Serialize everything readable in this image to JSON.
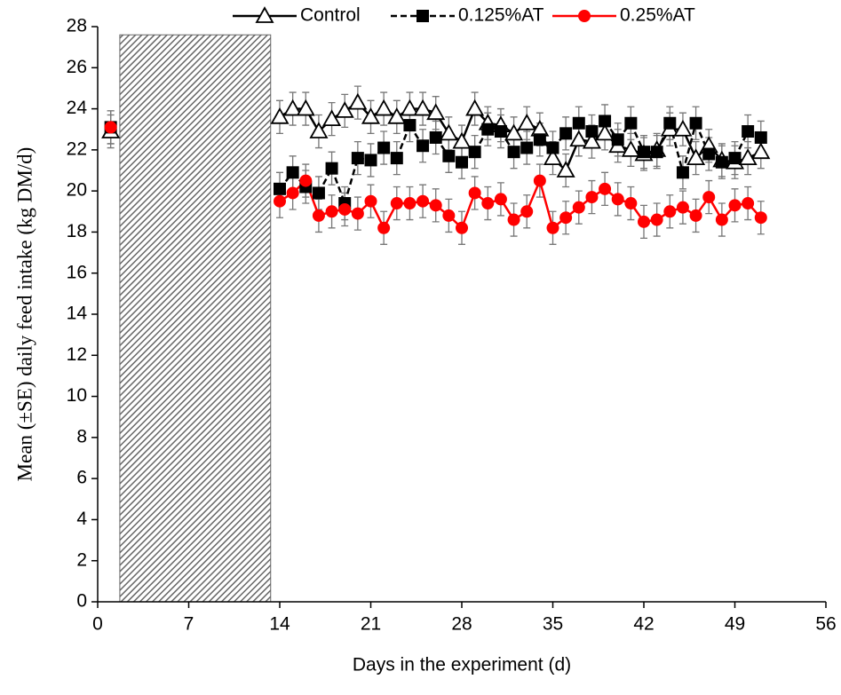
{
  "chart_data": {
    "type": "line",
    "xlabel": "Days in the experiment (d)",
    "ylabel": "Mean (±SE) daily feed intake (kg DM/d)",
    "x": [
      1,
      14,
      15,
      16,
      17,
      18,
      19,
      20,
      21,
      22,
      23,
      24,
      25,
      26,
      27,
      28,
      29,
      30,
      31,
      32,
      33,
      34,
      35,
      36,
      37,
      38,
      39,
      40,
      41,
      42,
      43,
      44,
      45,
      46,
      47,
      48,
      49,
      50,
      51
    ],
    "series": [
      {
        "name": "Control",
        "color": "#000000",
        "marker": "triangle",
        "dash": "solid",
        "error": 0.8,
        "values": [
          22.9,
          23.6,
          24.0,
          24.0,
          22.9,
          23.5,
          23.9,
          24.3,
          23.6,
          24.0,
          23.6,
          24.0,
          24.0,
          23.8,
          22.8,
          22.4,
          24.0,
          23.3,
          23.2,
          22.8,
          23.3,
          23.0,
          21.6,
          21.0,
          22.5,
          22.4,
          22.8,
          22.2,
          22.0,
          21.8,
          22.0,
          23.0,
          23.0,
          21.6,
          22.2,
          21.5,
          21.4,
          21.6,
          21.9
        ]
      },
      {
        "name": "0.125%AT",
        "color": "#000000",
        "marker": "square",
        "dash": "dashed",
        "error": 0.8,
        "values": [
          23.1,
          20.1,
          20.9,
          20.2,
          19.9,
          21.1,
          19.4,
          21.6,
          21.5,
          22.1,
          21.6,
          23.2,
          22.2,
          22.6,
          21.7,
          21.4,
          21.9,
          23.0,
          22.9,
          21.9,
          22.1,
          22.5,
          22.1,
          22.8,
          23.3,
          22.9,
          23.4,
          22.5,
          23.3,
          21.9,
          21.9,
          23.3,
          20.9,
          23.3,
          21.8,
          21.4,
          21.6,
          22.9,
          22.6
        ]
      },
      {
        "name": "0.25%AT",
        "color": "#ff0000",
        "marker": "circle",
        "dash": "solid",
        "error": 0.8,
        "values": [
          23.1,
          19.5,
          19.9,
          20.5,
          18.8,
          19.0,
          19.1,
          18.9,
          19.5,
          18.2,
          19.4,
          19.4,
          19.5,
          19.3,
          18.8,
          18.2,
          19.9,
          19.4,
          19.6,
          18.6,
          19.0,
          20.5,
          18.2,
          18.7,
          19.2,
          19.7,
          20.1,
          19.6,
          19.4,
          18.5,
          18.6,
          19.0,
          19.2,
          18.8,
          19.7,
          18.6,
          19.3,
          19.4,
          18.7
        ]
      }
    ],
    "shaded_region": {
      "x": [
        1.7,
        13.3
      ],
      "y": [
        0,
        27.6
      ]
    },
    "xlim": [
      0,
      56
    ],
    "xticks": [
      0,
      7,
      14,
      21,
      28,
      35,
      42,
      49,
      56
    ],
    "ylim": [
      0,
      28
    ],
    "yticks": [
      0,
      2,
      4,
      6,
      8,
      10,
      12,
      14,
      16,
      18,
      20,
      22,
      24,
      26,
      28
    ],
    "grid": false,
    "legend": "top"
  }
}
